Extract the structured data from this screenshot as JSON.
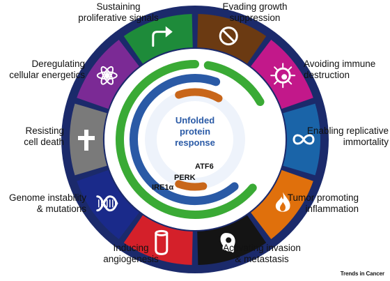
{
  "hallmarks": [
    {
      "id": "sustaining-proliferative-signals",
      "label": "Sustaining\nproliferative signals",
      "color": "#1e8b3a",
      "icon": "arrow-icon"
    },
    {
      "id": "evading-growth-suppression",
      "label": "Evading growth\nsuppression",
      "color": "#6b3a12",
      "icon": "prohibition-icon"
    },
    {
      "id": "avoiding-immune-destruction",
      "label": "Avoiding immune\ndestruction",
      "color": "#c2188a",
      "icon": "pathogen-icon"
    },
    {
      "id": "enabling-replicative-immortality",
      "label": "Enabling replicative\nimmortality",
      "color": "#1a64a8",
      "icon": "infinity-icon"
    },
    {
      "id": "tumor-promoting-inflammation",
      "label": "Tumor promoting\ninflammation",
      "color": "#e0700c",
      "icon": "flame-icon"
    },
    {
      "id": "activating-invasion-metastasis",
      "label": "Activating invasion\n& metastasis",
      "color": "#141414",
      "icon": "invading-cell-icon"
    },
    {
      "id": "inducing-angiogenesis",
      "label": "Inducing\nangiogenesis",
      "color": "#d4202a",
      "icon": "vessel-icon"
    },
    {
      "id": "genome-instability-mutations",
      "label": "Genome instability\n& mutations",
      "color": "#1a2a8a",
      "icon": "dna-icon"
    },
    {
      "id": "resisting-cell-death",
      "label": "Resisting\ncell death",
      "color": "#7a7a7a",
      "icon": "cross-icon"
    },
    {
      "id": "deregulating-cellular-energetics",
      "label": "Deregulating\ncellular energetics",
      "color": "#7b2a95",
      "icon": "atom-icon"
    }
  ],
  "center": {
    "label": "Unfolded\nprotein\nresponse"
  },
  "sensors": [
    {
      "id": "ire1",
      "label": "IRE1α",
      "color": "#3aaa35"
    },
    {
      "id": "perk",
      "label": "PERK",
      "color": "#2a5aa6"
    },
    {
      "id": "atf6",
      "label": "ATF6",
      "color": "#c8661a"
    }
  ],
  "colors": {
    "ring_outer": "#1b2a6b",
    "ring_divider": "#ffffff",
    "inner_disc": "#eef3fb"
  },
  "brand": "Trends in Cancer"
}
